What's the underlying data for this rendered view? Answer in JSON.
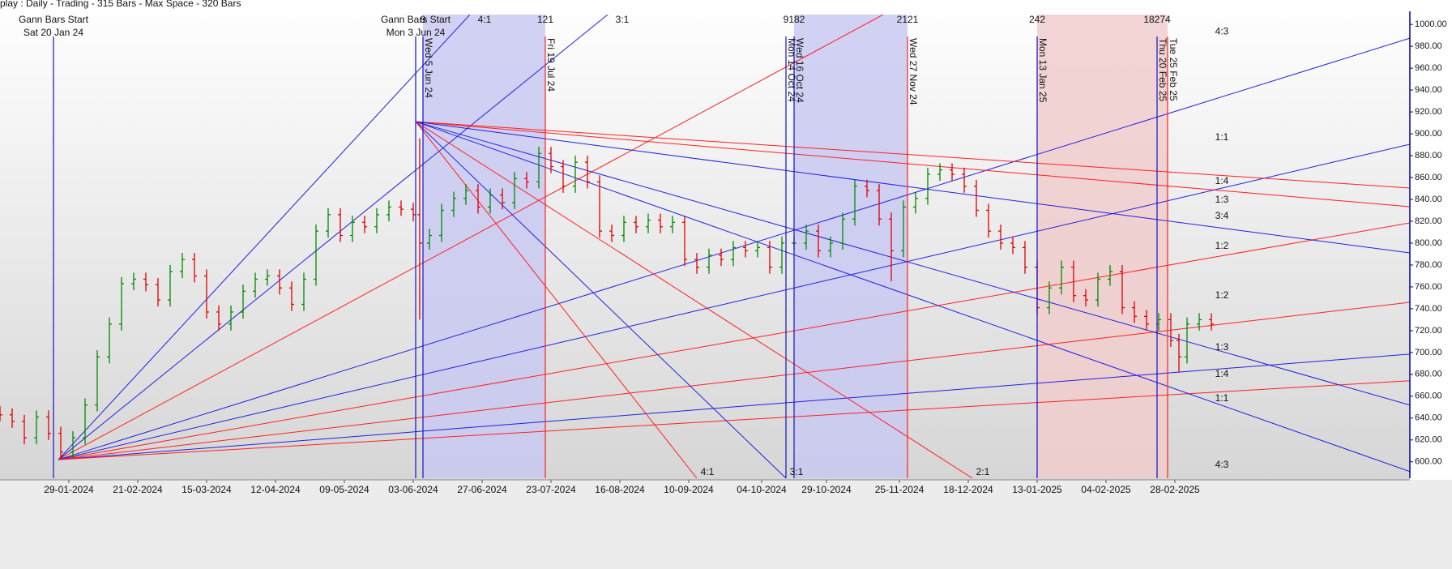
{
  "chart_data": {
    "type": "ohlc",
    "header": "play : Daily  - Trading - 315 Bars -  Max Space - 320 Bars",
    "up_color": "#008a00",
    "down_color": "#e00000",
    "x": [
      0,
      3,
      6,
      9,
      12,
      15,
      18,
      21,
      24,
      27,
      30,
      33,
      36,
      39,
      42,
      45,
      48,
      51,
      54,
      57,
      60,
      63,
      66,
      69,
      72,
      75,
      78,
      81,
      84,
      87,
      90,
      93,
      96,
      99,
      102,
      103.6,
      106,
      109,
      112,
      115,
      118,
      121,
      124,
      127,
      130,
      133,
      136,
      139,
      142,
      145,
      148,
      151,
      154,
      157,
      160,
      163,
      166,
      169,
      172,
      175,
      178,
      181,
      184,
      187,
      190,
      193,
      196,
      199,
      202,
      205,
      208,
      211,
      214,
      217,
      220,
      223,
      226,
      229,
      232,
      235,
      238,
      241,
      244,
      247,
      250,
      253,
      256,
      259,
      262,
      265,
      268,
      271,
      274,
      277,
      280,
      283,
      286,
      289,
      291,
      293,
      296,
      299
    ],
    "open": [
      645,
      643,
      637,
      622,
      641,
      626,
      609,
      622,
      652,
      696,
      726,
      763,
      767,
      762,
      748,
      774,
      785,
      770,
      737,
      726,
      737,
      756,
      767,
      770,
      759,
      744,
      767,
      811,
      826,
      807,
      819,
      815,
      826,
      833,
      831,
      826,
      800,
      807,
      830,
      841,
      848,
      833,
      844,
      837,
      859,
      856,
      882,
      870,
      852,
      874,
      856,
      811,
      807,
      819,
      815,
      821,
      815,
      819,
      785,
      778,
      789,
      785,
      796,
      793,
      796,
      778,
      800,
      800,
      811,
      793,
      800,
      822,
      852,
      848,
      822,
      793,
      833,
      841,
      863,
      867,
      863,
      852,
      830,
      811,
      800,
      796,
      778,
      741,
      759,
      778,
      752,
      748,
      767,
      774,
      741,
      733,
      726,
      730,
      711,
      696,
      726,
      730
    ],
    "high": [
      651,
      649,
      643,
      647,
      647,
      632,
      628,
      658,
      702,
      732,
      769,
      773,
      773,
      768,
      780,
      791,
      791,
      776,
      743,
      743,
      762,
      773,
      776,
      776,
      765,
      773,
      817,
      832,
      832,
      825,
      825,
      832,
      839,
      839,
      837,
      896,
      813,
      836,
      847,
      854,
      854,
      850,
      850,
      865,
      865,
      888,
      888,
      876,
      880,
      880,
      862,
      817,
      825,
      825,
      827,
      827,
      825,
      825,
      791,
      795,
      795,
      802,
      802,
      802,
      802,
      806,
      806,
      817,
      817,
      806,
      828,
      858,
      858,
      854,
      828,
      839,
      847,
      869,
      873,
      873,
      869,
      858,
      836,
      817,
      806,
      802,
      784,
      765,
      784,
      784,
      758,
      773,
      780,
      780,
      747,
      739,
      736,
      736,
      717,
      732,
      736,
      736
    ],
    "low": [
      637,
      631,
      616,
      616,
      620,
      603,
      603,
      616,
      646,
      690,
      720,
      757,
      756,
      742,
      742,
      768,
      764,
      731,
      720,
      720,
      731,
      750,
      761,
      753,
      738,
      738,
      761,
      805,
      801,
      801,
      809,
      809,
      820,
      825,
      820,
      730,
      794,
      801,
      824,
      835,
      827,
      827,
      831,
      831,
      850,
      850,
      864,
      846,
      846,
      850,
      805,
      801,
      801,
      809,
      809,
      809,
      809,
      779,
      772,
      772,
      779,
      779,
      787,
      787,
      772,
      772,
      794,
      794,
      787,
      787,
      794,
      816,
      842,
      816,
      765,
      787,
      827,
      835,
      857,
      857,
      846,
      824,
      805,
      794,
      790,
      772,
      735,
      735,
      753,
      746,
      742,
      742,
      761,
      735,
      727,
      720,
      720,
      705,
      682,
      690,
      720,
      720
    ],
    "close": [
      643,
      637,
      622,
      641,
      626,
      609,
      622,
      652,
      696,
      726,
      763,
      767,
      762,
      748,
      774,
      785,
      770,
      737,
      726,
      737,
      756,
      767,
      770,
      759,
      744,
      767,
      811,
      826,
      807,
      819,
      815,
      826,
      833,
      831,
      826,
      800,
      807,
      830,
      841,
      848,
      833,
      844,
      837,
      859,
      856,
      882,
      870,
      852,
      874,
      856,
      811,
      807,
      819,
      815,
      821,
      815,
      819,
      785,
      778,
      789,
      785,
      796,
      793,
      796,
      778,
      800,
      800,
      811,
      793,
      800,
      822,
      852,
      848,
      822,
      793,
      833,
      841,
      863,
      867,
      863,
      852,
      830,
      811,
      800,
      796,
      778,
      741,
      759,
      778,
      752,
      748,
      767,
      774,
      741,
      733,
      726,
      730,
      711,
      696,
      726,
      730,
      726
    ],
    "xlim": [
      0,
      348
    ],
    "xticks": [
      {
        "value": 17,
        "label": "29-01-2024"
      },
      {
        "value": 34,
        "label": "21-02-2024"
      },
      {
        "value": 51,
        "label": "15-03-2024"
      },
      {
        "value": 68,
        "label": "12-04-2024"
      },
      {
        "value": 85,
        "label": "09-05-2024"
      },
      {
        "value": 102,
        "label": "03-06-2024"
      },
      {
        "value": 119,
        "label": "27-06-2024"
      },
      {
        "value": 136,
        "label": "23-07-2024"
      },
      {
        "value": 153,
        "label": "16-08-2024"
      },
      {
        "value": 170,
        "label": "10-09-2024"
      },
      {
        "value": 188,
        "label": "04-10-2024"
      },
      {
        "value": 204,
        "label": "29-10-2024"
      },
      {
        "value": 222,
        "label": "25-11-2024"
      },
      {
        "value": 239,
        "label": "18-12-2024"
      },
      {
        "value": 256,
        "label": "13-01-2025"
      },
      {
        "value": 273,
        "label": "04-02-2025"
      },
      {
        "value": 290,
        "label": "28-02-2025"
      }
    ],
    "ylim": [
      585,
      1009
    ],
    "yticks": [
      {
        "value": 600,
        "label": "600.00"
      },
      {
        "value": 620,
        "label": "620.00"
      },
      {
        "value": 640,
        "label": "640.00"
      },
      {
        "value": 660,
        "label": "660.00"
      },
      {
        "value": 680,
        "label": "680.00"
      },
      {
        "value": 700,
        "label": "700.00"
      },
      {
        "value": 720,
        "label": "720.00"
      },
      {
        "value": 740,
        "label": "740.00"
      },
      {
        "value": 760,
        "label": "760.00"
      },
      {
        "value": 780,
        "label": "780.00"
      },
      {
        "value": 800,
        "label": "800.00"
      },
      {
        "value": 820,
        "label": "820.00"
      },
      {
        "value": 840,
        "label": "840.00"
      },
      {
        "value": 860,
        "label": "860.00"
      },
      {
        "value": 880,
        "label": "880.00"
      },
      {
        "value": 900,
        "label": "900.00"
      },
      {
        "value": 920,
        "label": "920.00"
      },
      {
        "value": 940,
        "label": "940.00"
      },
      {
        "value": 960,
        "label": "960.00"
      },
      {
        "value": 980,
        "label": "980.00"
      },
      {
        "value": 1000,
        "label": "1000.00"
      }
    ],
    "shaded": [
      {
        "from": 104.4,
        "to": 134.6,
        "color": "#c9c9f2"
      },
      {
        "from": 196,
        "to": 224,
        "color": "#c9c9f2"
      },
      {
        "from": 256,
        "to": 288.2,
        "color": "#f0cccc"
      }
    ],
    "events": [
      {
        "x": 13.2,
        "color": "#1010d0",
        "title": "Gann Bars Start",
        "label": "Sat 20 Jan 24"
      },
      {
        "x": 102.6,
        "color": "#1010d0",
        "title": "Gann Bars Start",
        "label": "Mon 3 Jun 24"
      },
      {
        "x": 104.4,
        "color": "#1010d0",
        "label": "Wed 5 Jun 24",
        "top": "9"
      },
      {
        "x": 134.6,
        "color": "#ff2020",
        "label": "Fri 19 Jul 24",
        "top": "121"
      },
      {
        "x": 194,
        "color": "#1010d0",
        "label": "Mon 14 Oct 24"
      },
      {
        "x": 196,
        "color": "#1010d0",
        "label": "Wed 16 Oct 24",
        "top": "9182"
      },
      {
        "x": 224,
        "color": "#ff2020",
        "label": "Wed 27 Nov 24",
        "top": "2121"
      },
      {
        "x": 256,
        "color": "#1010d0",
        "label": "Mon 13 Jan 25",
        "top": "242"
      },
      {
        "x": 285.6,
        "color": "#1010d0",
        "label": "Thu 20 Feb 25",
        "top": "18274"
      },
      {
        "x": 288.2,
        "color": "#ff2020",
        "label": "Tue 25 Feb 25"
      }
    ],
    "fans": [
      {
        "origin": [
          14.4,
          602
        ],
        "lines": [
          {
            "to": [
              116,
              1009
            ],
            "color": "#2020e0",
            "label": "4:1"
          },
          {
            "to": [
              150,
              1009
            ],
            "color": "#2020e0",
            "label": "3:1"
          },
          {
            "to": [
              218,
              1009
            ],
            "color": "#ff2020"
          },
          {
            "to": [
              348,
              987.4
            ],
            "color": "#2020e0",
            "label": "4:3"
          },
          {
            "to": [
              348,
              890.4
            ],
            "color": "#2020e0",
            "label": "1:1"
          },
          {
            "to": [
              348,
              818.5
            ],
            "color": "#ff2020",
            "label": "3:4"
          },
          {
            "to": [
              348,
              745.9
            ],
            "color": "#ff2020",
            "label": "1:2"
          },
          {
            "to": [
              348,
              698.5
            ],
            "color": "#2020e0",
            "label": "1:3"
          },
          {
            "to": [
              348,
              674.1
            ],
            "color": "#ff2020",
            "label": "1:4"
          }
        ]
      },
      {
        "origin": [
          102.6,
          911.1
        ],
        "lines": [
          {
            "to": [
              348,
              850.4
            ],
            "color": "#ff2020",
            "label": "1:4"
          },
          {
            "to": [
              348,
              833.3
            ],
            "color": "#ff2020",
            "label": "1:3"
          },
          {
            "to": [
              348,
              791.1
            ],
            "color": "#2020e0",
            "label": "1:2"
          },
          {
            "to": [
              348,
              651.9
            ],
            "color": "#2020e0",
            "label": "1:1"
          },
          {
            "to": [
              348,
              591.1
            ],
            "color": "#2020e0",
            "label": "4:3"
          },
          {
            "to": [
              240,
              585
            ],
            "color": "#ff2020",
            "label": "2:1"
          },
          {
            "to": [
              194,
              585
            ],
            "color": "#2020e0",
            "label": "3:1"
          },
          {
            "to": [
              172,
              585
            ],
            "color": "#ff2020",
            "label": "4:1"
          }
        ]
      }
    ]
  }
}
